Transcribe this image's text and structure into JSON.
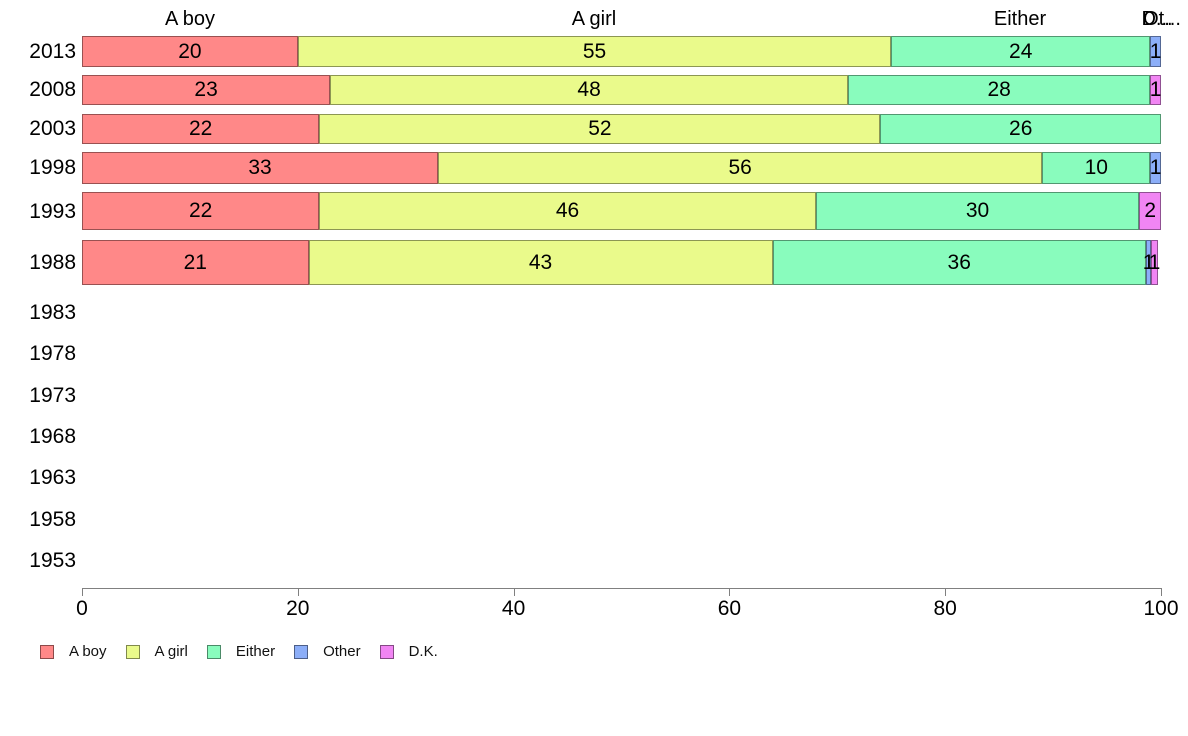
{
  "chart_data": {
    "type": "bar",
    "orientation": "horizontal",
    "stacked": true,
    "title": "",
    "xlabel": "",
    "ylabel": "",
    "xlim": [
      0,
      100
    ],
    "xticks": [
      0,
      20,
      40,
      60,
      80,
      100
    ],
    "grid": false,
    "legend_position": "bottom-left",
    "column_headers": [
      "A boy",
      "A girl",
      "Either",
      "Ot...",
      "D..."
    ],
    "series_colors": {
      "A boy": "#ff8888",
      "A girl": "#eafa8b",
      "Either": "#89fcbd",
      "Other": "#8caef8",
      "D.K.": "#f185f3"
    },
    "categories": [
      "2013",
      "2008",
      "2003",
      "1998",
      "1993",
      "1988",
      "1983",
      "1978",
      "1973",
      "1968",
      "1963",
      "1958",
      "1953"
    ],
    "series": [
      {
        "name": "A boy",
        "values": [
          20,
          23,
          22,
          33,
          22,
          21,
          null,
          null,
          null,
          null,
          null,
          null,
          null
        ]
      },
      {
        "name": "A girl",
        "values": [
          55,
          48,
          52,
          56,
          46,
          43,
          null,
          null,
          null,
          null,
          null,
          null,
          null
        ]
      },
      {
        "name": "Either",
        "values": [
          24,
          28,
          26,
          10,
          30,
          36,
          null,
          null,
          null,
          null,
          null,
          null,
          null
        ]
      },
      {
        "name": "Other",
        "values": [
          1,
          null,
          null,
          1,
          null,
          1,
          null,
          null,
          null,
          null,
          null,
          null,
          null
        ]
      },
      {
        "name": "D.K.",
        "values": [
          null,
          1,
          null,
          null,
          2,
          1,
          null,
          null,
          null,
          null,
          null,
          null,
          null
        ]
      }
    ],
    "rows": [
      {
        "year": "2013",
        "segments": [
          {
            "series": "A boy",
            "label": "20",
            "w": 20
          },
          {
            "series": "A girl",
            "label": "55",
            "w": 55
          },
          {
            "series": "Either",
            "label": "24",
            "w": 24
          },
          {
            "series": "Other",
            "label": "1",
            "w": 1
          }
        ]
      },
      {
        "year": "2008",
        "segments": [
          {
            "series": "A boy",
            "label": "23",
            "w": 23
          },
          {
            "series": "A girl",
            "label": "48",
            "w": 48
          },
          {
            "series": "Either",
            "label": "28",
            "w": 28
          },
          {
            "series": "D.K.",
            "label": "1",
            "w": 1
          }
        ]
      },
      {
        "year": "2003",
        "segments": [
          {
            "series": "A boy",
            "label": "22",
            "w": 22
          },
          {
            "series": "A girl",
            "label": "52",
            "w": 52
          },
          {
            "series": "Either",
            "label": "26",
            "w": 26
          }
        ]
      },
      {
        "year": "1998",
        "segments": [
          {
            "series": "A boy",
            "label": "33",
            "w": 33
          },
          {
            "series": "A girl",
            "label": "56",
            "w": 56
          },
          {
            "series": "Either",
            "label": "10",
            "w": 10
          },
          {
            "series": "Other",
            "label": "1",
            "w": 1
          }
        ]
      },
      {
        "year": "1993",
        "segments": [
          {
            "series": "A boy",
            "label": "22",
            "w": 22
          },
          {
            "series": "A girl",
            "label": "46",
            "w": 46
          },
          {
            "series": "Either",
            "label": "30",
            "w": 30
          },
          {
            "series": "D.K.",
            "label": "2",
            "w": 2
          }
        ]
      },
      {
        "year": "1988",
        "segments": [
          {
            "series": "A boy",
            "label": "21",
            "w": 21
          },
          {
            "series": "A girl",
            "label": "43",
            "w": 43
          },
          {
            "series": "Either",
            "label": "36",
            "w": 34.6
          },
          {
            "series": "Other",
            "label": "1",
            "w": 0.5
          },
          {
            "series": "D.K.",
            "label": "1",
            "w": 0.6
          }
        ]
      },
      {
        "year": "1983",
        "segments": []
      },
      {
        "year": "1978",
        "segments": []
      },
      {
        "year": "1973",
        "segments": []
      },
      {
        "year": "1968",
        "segments": []
      },
      {
        "year": "1963",
        "segments": []
      },
      {
        "year": "1958",
        "segments": []
      },
      {
        "year": "1953",
        "segments": []
      }
    ],
    "legend": [
      {
        "label": "A boy"
      },
      {
        "label": "A girl"
      },
      {
        "label": "Either"
      },
      {
        "label": "Other"
      },
      {
        "label": "D.K."
      }
    ]
  }
}
